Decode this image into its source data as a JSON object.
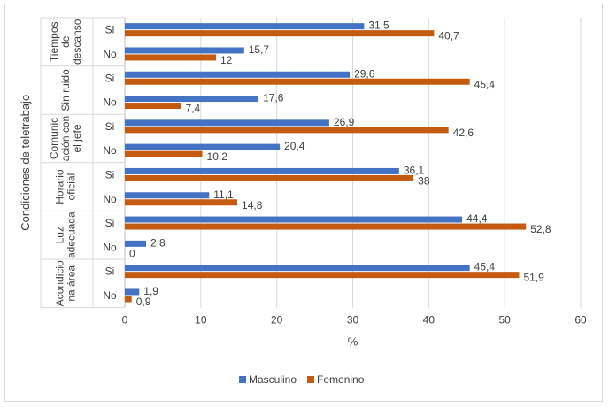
{
  "chart_data": {
    "type": "bar",
    "orientation": "horizontal",
    "title": "",
    "xlabel": "%",
    "ylabel": "Condiciones de teletrabajo",
    "xlim": [
      0,
      60
    ],
    "xticks": [
      0,
      10,
      20,
      30,
      40,
      50,
      60
    ],
    "grid": true,
    "legend_position": "bottom",
    "colors": {
      "Masculino": "#4472C4",
      "Femenino": "#C55A11"
    },
    "groups": [
      {
        "label": "Tiempos de descanso",
        "label_lines": [
          "Tiempos",
          "de",
          "descanso"
        ],
        "rows": [
          {
            "label": "Si",
            "Masculino": 31.5,
            "Femenino": 40.7,
            "labels": [
              "31,5",
              "40,7"
            ]
          },
          {
            "label": "No",
            "Masculino": 15.7,
            "Femenino": 12,
            "labels": [
              "15,7",
              "12"
            ]
          }
        ]
      },
      {
        "label": "Sin ruido",
        "label_lines": [
          "Sin ruido"
        ],
        "rows": [
          {
            "label": "Si",
            "Masculino": 29.6,
            "Femenino": 45.4,
            "labels": [
              "29,6",
              "45,4"
            ]
          },
          {
            "label": "No",
            "Masculino": 17.6,
            "Femenino": 7.4,
            "labels": [
              "17,6",
              "7,4"
            ]
          }
        ]
      },
      {
        "label": "Comunicación con el jefe",
        "label_lines": [
          "Comunic",
          "ación con",
          "el jefe"
        ],
        "rows": [
          {
            "label": "Si",
            "Masculino": 26.9,
            "Femenino": 42.6,
            "labels": [
              "26,9",
              "42,6"
            ]
          },
          {
            "label": "No",
            "Masculino": 20.4,
            "Femenino": 10.2,
            "labels": [
              "20,4",
              "10,2"
            ]
          }
        ]
      },
      {
        "label": "Horario oficial",
        "label_lines": [
          "Horario",
          "oficial"
        ],
        "rows": [
          {
            "label": "Si",
            "Masculino": 36.1,
            "Femenino": 38,
            "labels": [
              "36,1",
              "38"
            ]
          },
          {
            "label": "No",
            "Masculino": 11.1,
            "Femenino": 14.8,
            "labels": [
              "11,1",
              "14,8"
            ]
          }
        ]
      },
      {
        "label": "Luz adecuada",
        "label_lines": [
          "Luz",
          "adecuada"
        ],
        "rows": [
          {
            "label": "Si",
            "Masculino": 44.4,
            "Femenino": 52.8,
            "labels": [
              "44,4",
              "52,8"
            ]
          },
          {
            "label": "No",
            "Masculino": 2.8,
            "Femenino": 0,
            "labels": [
              "2,8",
              "0"
            ]
          }
        ]
      },
      {
        "label": "Acondiciona área",
        "label_lines": [
          "Acondicio",
          "na área"
        ],
        "rows": [
          {
            "label": "Si",
            "Masculino": 45.4,
            "Femenino": 51.9,
            "labels": [
              "45,4",
              "51,9"
            ]
          },
          {
            "label": "No",
            "Masculino": 1.9,
            "Femenino": 0.9,
            "labels": [
              "1,9",
              "0,9"
            ]
          }
        ]
      }
    ],
    "series": [
      {
        "name": "Masculino"
      },
      {
        "name": "Femenino"
      }
    ]
  }
}
